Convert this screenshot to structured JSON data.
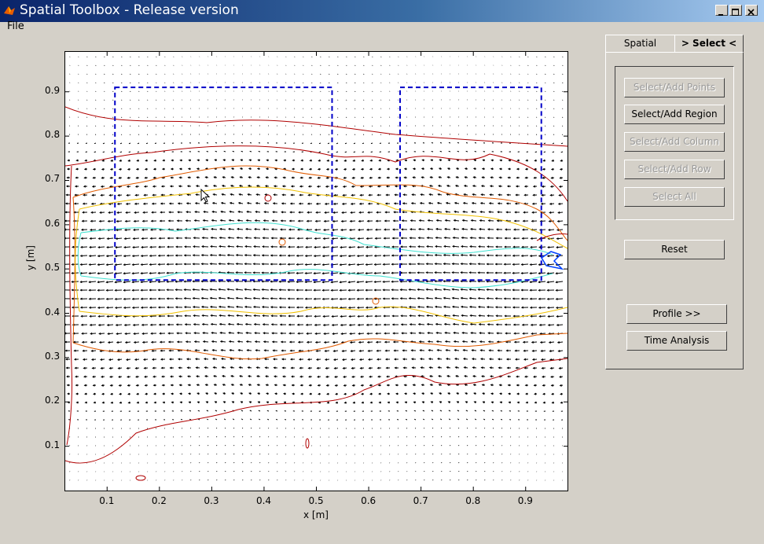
{
  "window": {
    "title": "Spatial Toolbox - Release version"
  },
  "menu": {
    "file": "File"
  },
  "tabs": [
    {
      "label": "Spatial"
    },
    {
      "label": "> Select <"
    }
  ],
  "select_panel": {
    "buttons": [
      {
        "label": "Select/Add Points",
        "enabled": false
      },
      {
        "label": "Select/Add Region",
        "enabled": true
      },
      {
        "label": "Select/Add Column",
        "enabled": false
      },
      {
        "label": "Select/Add Row",
        "enabled": false
      },
      {
        "label": "Select All",
        "enabled": false
      }
    ]
  },
  "actions": {
    "reset": "Reset",
    "profile": "Profile >>",
    "time_analysis": "Time Analysis"
  },
  "chart_data": {
    "type": "contour+quiver",
    "xlabel": "x [m]",
    "ylabel": "y [m]",
    "xlim": [
      0.02,
      0.98
    ],
    "ylim": [
      0.0,
      0.99
    ],
    "x_ticks": [
      "0.1",
      "0.2",
      "0.3",
      "0.4",
      "0.5",
      "0.6",
      "0.7",
      "0.8",
      "0.9"
    ],
    "y_ticks": [
      "0.1",
      "0.2",
      "0.3",
      "0.4",
      "0.5",
      "0.6",
      "0.7",
      "0.8",
      "0.9"
    ],
    "selected_regions": [
      {
        "x": [
          0.115,
          0.53
        ],
        "y": [
          0.475,
          0.91
        ]
      },
      {
        "x": [
          0.66,
          0.93
        ],
        "y": [
          0.475,
          0.91
        ]
      }
    ],
    "contour_colors": [
      "#b00000",
      "#e05a00",
      "#f0c000",
      "#40e0d0",
      "#0040ff"
    ]
  }
}
